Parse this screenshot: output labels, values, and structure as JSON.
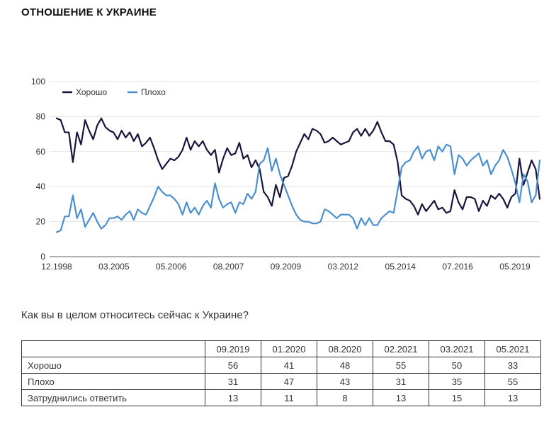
{
  "page": {
    "title": "ОТНОШЕНИЕ К УКРАИНЕ",
    "question": "Как вы в целом относитесь сейчас к Украине?"
  },
  "chart_data": {
    "type": "line",
    "title": "ОТНОШЕНИЕ К УКРАИНЕ",
    "xlabel": "",
    "ylabel": "",
    "ylim": [
      0,
      100
    ],
    "yticks": [
      0,
      20,
      40,
      60,
      80,
      100
    ],
    "grid": true,
    "legend": "top-left",
    "x_tick_labels": [
      "12.1998",
      "03.2005",
      "05.2006",
      "08.2007",
      "09.2009",
      "03.2012",
      "05.2014",
      "07.2016",
      "05.2019"
    ],
    "series": [
      {
        "name": "Хорошо",
        "color": "#16163f",
        "values": [
          79,
          78,
          71,
          71,
          54,
          71,
          64,
          78,
          72,
          67,
          75,
          79,
          74,
          72,
          71,
          67,
          72,
          68,
          71,
          66,
          70,
          63,
          65,
          68,
          62,
          55,
          50,
          53,
          56,
          55,
          57,
          61,
          68,
          61,
          66,
          63,
          66,
          61,
          58,
          61,
          48,
          56,
          62,
          58,
          59,
          65,
          56,
          58,
          51,
          55,
          50,
          37,
          34,
          29,
          41,
          34,
          45,
          46,
          52,
          60,
          65,
          70,
          67,
          73,
          72,
          70,
          65,
          66,
          68,
          66,
          64,
          65,
          66,
          71,
          73,
          69,
          73,
          69,
          72,
          77,
          71,
          66,
          66,
          64,
          54,
          35,
          33,
          32,
          29,
          24,
          30,
          26,
          29,
          32,
          27,
          28,
          25,
          26,
          38,
          31,
          27,
          34,
          34,
          33,
          26,
          32,
          29,
          35,
          33,
          36,
          33,
          28,
          34,
          36,
          56,
          41,
          48,
          55,
          50,
          33
        ]
      },
      {
        "name": "Плохо",
        "color": "#4a8fcf",
        "values": [
          14,
          15,
          23,
          23,
          35,
          22,
          27,
          17,
          21,
          25,
          20,
          16,
          18,
          22,
          22,
          23,
          21,
          24,
          26,
          21,
          27,
          25,
          24,
          29,
          34,
          40,
          37,
          35,
          35,
          33,
          30,
          24,
          31,
          25,
          28,
          24,
          29,
          32,
          28,
          42,
          33,
          28,
          30,
          31,
          25,
          31,
          30,
          36,
          33,
          37,
          53,
          55,
          62,
          49,
          56,
          47,
          41,
          35,
          29,
          24,
          21,
          20,
          20,
          19,
          19,
          20,
          27,
          26,
          24,
          22,
          24,
          24,
          24,
          22,
          16,
          22,
          18,
          22,
          18,
          18,
          22,
          24,
          26,
          25,
          38,
          51,
          54,
          55,
          60,
          63,
          56,
          60,
          61,
          55,
          63,
          60,
          64,
          63,
          47,
          58,
          56,
          52,
          55,
          57,
          59,
          52,
          55,
          47,
          52,
          55,
          61,
          57,
          50,
          42,
          31,
          47,
          43,
          31,
          35,
          55
        ]
      }
    ]
  },
  "table": {
    "headers": [
      "09.2019",
      "01.2020",
      "08.2020",
      "02.2021",
      "03.2021",
      "05.2021"
    ],
    "rows": [
      {
        "label": "Хорошо",
        "values": [
          "56",
          "41",
          "48",
          "55",
          "50",
          "33"
        ]
      },
      {
        "label": "Плохо",
        "values": [
          "31",
          "47",
          "43",
          "31",
          "35",
          "55"
        ]
      },
      {
        "label": "Затруднились ответить",
        "values": [
          "13",
          "11",
          "8",
          "13",
          "15",
          "13"
        ]
      }
    ]
  }
}
